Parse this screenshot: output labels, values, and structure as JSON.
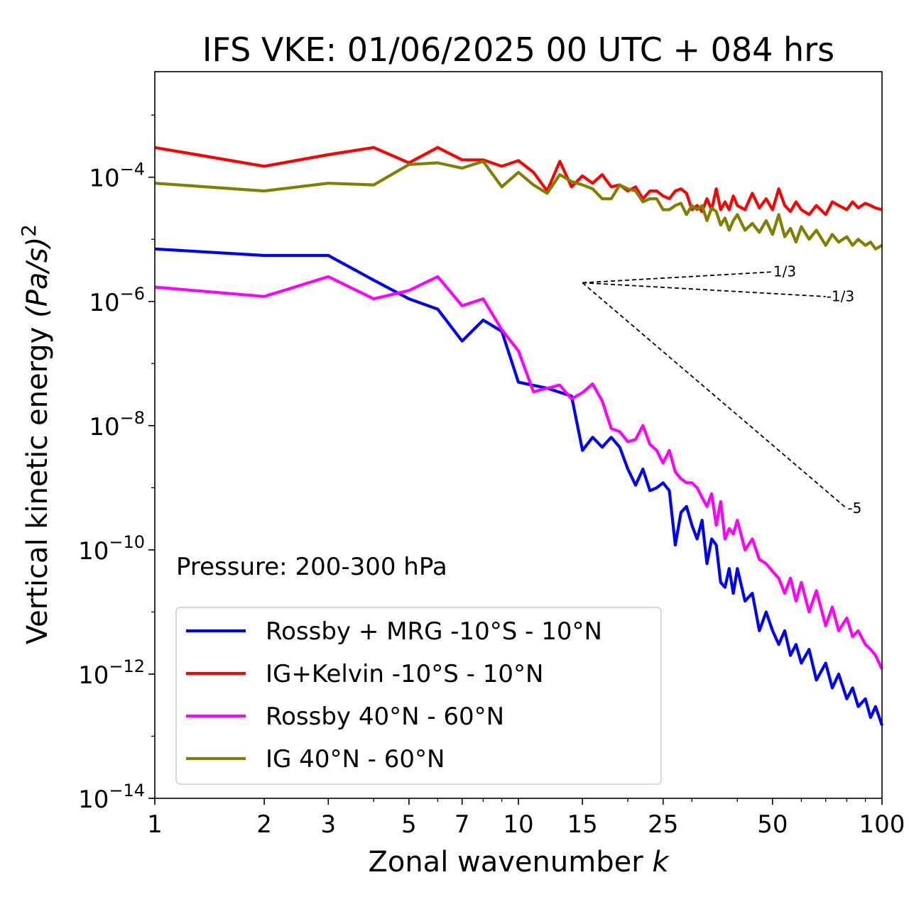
{
  "chart_data": {
    "type": "line",
    "title": "IFS VKE: 01/06/2025 00 UTC + 084 hrs",
    "xlabel": "Zonal wavenumber",
    "xlabel_italic": "k",
    "ylabel": "Vertical kinetic energy",
    "ylabel_unit": "(Pa/s)",
    "ylabel_unit_power": "2",
    "annotation": "Pressure: 200-300 hPa",
    "xscale": "log",
    "yscale": "log",
    "xlim": [
      1,
      100
    ],
    "ylim": [
      1e-14,
      0.005
    ],
    "grid": false,
    "legend_position": "lower-left",
    "x_ticks": [
      {
        "value": 1,
        "label": "1"
      },
      {
        "value": 2,
        "label": "2"
      },
      {
        "value": 3,
        "label": "3"
      },
      {
        "value": 5,
        "label": "5"
      },
      {
        "value": 7,
        "label": "7"
      },
      {
        "value": 10,
        "label": "10"
      },
      {
        "value": 15,
        "label": "15"
      },
      {
        "value": 25,
        "label": "25"
      },
      {
        "value": 50,
        "label": "50"
      },
      {
        "value": 100,
        "label": "100"
      }
    ],
    "y_ticks": [
      {
        "value": 1e-14,
        "base": "10",
        "exp": "−14"
      },
      {
        "value": 1e-12,
        "base": "10",
        "exp": "−12"
      },
      {
        "value": 1e-10,
        "base": "10",
        "exp": "−10"
      },
      {
        "value": 1e-08,
        "base": "10",
        "exp": "−8"
      },
      {
        "value": 1e-06,
        "base": "10",
        "exp": "−6"
      },
      {
        "value": 0.0001,
        "base": "10",
        "exp": "−4"
      }
    ],
    "reference_slopes": [
      {
        "label": "1/3",
        "slope": 0.3333,
        "x_start": 15,
        "x_end": 50,
        "y_start": 2e-06
      },
      {
        "label": "-1/3",
        "slope": -0.3333,
        "x_start": 15,
        "x_end": 70,
        "y_start": 2e-06
      },
      {
        "label": "-5",
        "slope": -5,
        "x_start": 15,
        "x_end": 80,
        "y_start": 2e-06
      }
    ],
    "series": [
      {
        "name": "Rossby + MRG -10°S - 10°N",
        "color": "#0000ff",
        "x": [
          1,
          2,
          3,
          4,
          5,
          6,
          7,
          8,
          9,
          10,
          12,
          14,
          15,
          16,
          17,
          18,
          19,
          20,
          21,
          22,
          23,
          24,
          25,
          26,
          27,
          28,
          29,
          30,
          31,
          32,
          33,
          34,
          35,
          36,
          37,
          38,
          39,
          40,
          42,
          44,
          46,
          48,
          50,
          52,
          54,
          56,
          58,
          60,
          63,
          66,
          70,
          73,
          76,
          80,
          83,
          86,
          90,
          93,
          96,
          100
        ],
        "values": [
          7e-06,
          5.5e-06,
          5.5e-06,
          2.2e-06,
          1.1e-06,
          7.5e-07,
          2.3e-07,
          5e-07,
          3.3e-07,
          5e-08,
          4e-08,
          3e-08,
          4e-09,
          6.5e-09,
          4.5e-09,
          6.5e-09,
          4.5e-09,
          2e-09,
          1.1e-09,
          2e-09,
          9e-10,
          1e-09,
          1.2e-09,
          9e-10,
          1.2e-10,
          4e-10,
          5e-10,
          2.5e-10,
          1.5e-10,
          3e-10,
          6e-11,
          1.5e-10,
          1.2e-10,
          3e-11,
          2.5e-11,
          5e-11,
          2e-11,
          5e-11,
          1.5e-11,
          2e-11,
          5e-12,
          1e-11,
          5e-12,
          3e-12,
          5e-12,
          2e-12,
          3e-12,
          1.5e-12,
          2.5e-12,
          8e-13,
          1.5e-12,
          6e-13,
          1e-12,
          4e-13,
          6e-13,
          3e-13,
          4e-13,
          2e-13,
          3e-13,
          1.5e-13
        ]
      },
      {
        "name": "IG+Kelvin -10°S - 10°N",
        "color": "#ff0000",
        "x": [
          1,
          2,
          3,
          4,
          5,
          6,
          7,
          8,
          9,
          10,
          11,
          12,
          13,
          14,
          15,
          16,
          17,
          18,
          19,
          20,
          21,
          22,
          23,
          24,
          25,
          26,
          27,
          28,
          29,
          30,
          31,
          32,
          33,
          34,
          35,
          36,
          37,
          38,
          39,
          40,
          42,
          44,
          46,
          48,
          50,
          52,
          54,
          56,
          58,
          60,
          63,
          66,
          70,
          73,
          76,
          80,
          83,
          86,
          90,
          93,
          96,
          100
        ],
        "values": [
          0.0003,
          0.00015,
          0.00023,
          0.0003,
          0.00017,
          0.0003,
          0.00019,
          0.00019,
          0.00015,
          0.000185,
          0.00012,
          6e-05,
          0.00018,
          7e-05,
          0.000105,
          8e-05,
          0.00011,
          7e-05,
          7.5e-05,
          6e-05,
          7e-05,
          4.5e-05,
          6e-05,
          6e-05,
          5e-05,
          4.5e-05,
          6e-05,
          6.5e-05,
          5.5e-05,
          3e-05,
          3.5e-05,
          2.8e-05,
          4.5e-05,
          3e-05,
          6.5e-05,
          3e-05,
          4e-05,
          3e-05,
          5e-05,
          3.5e-05,
          3e-05,
          5.5e-05,
          3.2e-05,
          4.5e-05,
          3e-05,
          6.5e-05,
          3.5e-05,
          2.8e-05,
          4e-05,
          3e-05,
          2.5e-05,
          3.5e-05,
          2.5e-05,
          4e-05,
          3.5e-05,
          3e-05,
          4e-05,
          3.2e-05,
          3.8e-05,
          3.5e-05,
          3.2e-05,
          3e-05
        ]
      },
      {
        "name": "Rossby 40°N - 60°N",
        "color": "#ff00ff",
        "x": [
          1,
          2,
          3,
          4,
          5,
          6,
          7,
          8,
          9,
          10,
          11,
          12,
          13,
          14,
          15,
          16,
          17,
          18,
          19,
          20,
          21,
          22,
          23,
          24,
          25,
          26,
          27,
          28,
          29,
          30,
          31,
          32,
          33,
          34,
          35,
          36,
          37,
          38,
          39,
          40,
          42,
          44,
          46,
          48,
          50,
          52,
          54,
          56,
          58,
          60,
          63,
          66,
          70,
          73,
          76,
          80,
          83,
          86,
          90,
          93,
          96,
          100
        ],
        "values": [
          1.7e-06,
          1.2e-06,
          2.5e-06,
          1.1e-06,
          1.5e-06,
          2.5e-06,
          8.5e-07,
          1.1e-06,
          3.5e-07,
          1.6e-07,
          3.5e-08,
          4e-08,
          4.5e-08,
          2.7e-08,
          3.4e-08,
          4.7e-08,
          2.5e-08,
          9e-09,
          8e-09,
          5.5e-09,
          6e-09,
          1e-08,
          5e-09,
          4e-09,
          2.5e-09,
          4e-09,
          1.8e-09,
          1.4e-09,
          1.2e-09,
          1.2e-09,
          1e-09,
          7e-10,
          5e-10,
          8e-10,
          2.5e-10,
          6e-10,
          1.5e-10,
          2.2e-10,
          1.8e-10,
          3e-10,
          1e-10,
          1.5e-10,
          7e-11,
          6e-11,
          4.5e-11,
          3.5e-11,
          2e-11,
          3.5e-11,
          1.5e-11,
          3e-11,
          1e-11,
          2.2e-11,
          6e-12,
          1.2e-11,
          5e-12,
          8e-12,
          4e-12,
          5e-12,
          3e-12,
          2.5e-12,
          2e-12,
          1.2e-12
        ]
      },
      {
        "name": "IG 40°N - 60°N",
        "color": "#808000",
        "x": [
          1,
          2,
          3,
          4,
          5,
          6,
          7,
          8,
          9,
          10,
          11,
          12,
          13,
          14,
          15,
          16,
          17,
          18,
          19,
          20,
          21,
          22,
          23,
          24,
          25,
          26,
          27,
          28,
          29,
          30,
          31,
          32,
          33,
          34,
          35,
          36,
          37,
          38,
          39,
          40,
          42,
          44,
          46,
          48,
          50,
          52,
          54,
          56,
          58,
          60,
          63,
          66,
          70,
          73,
          76,
          80,
          83,
          86,
          90,
          93,
          96,
          100
        ],
        "values": [
          8e-05,
          6e-05,
          8e-05,
          7.5e-05,
          0.00016,
          0.00017,
          0.00014,
          0.00018,
          7e-05,
          0.00012,
          7.5e-05,
          5.5e-05,
          0.00011,
          8.5e-05,
          7.5e-05,
          6.5e-05,
          4.5e-05,
          4.5e-05,
          7.5e-05,
          6.5e-05,
          6e-05,
          4e-05,
          4.5e-05,
          4.5e-05,
          3e-05,
          3e-05,
          3.5e-05,
          3.8e-05,
          2.5e-05,
          3.5e-05,
          3e-05,
          3.5e-05,
          2e-05,
          3.2e-05,
          2.8e-05,
          1.7e-05,
          2.2e-05,
          1.4e-05,
          2e-05,
          2.5e-05,
          1.4e-05,
          1.8e-05,
          1.3e-05,
          2e-05,
          1.2e-05,
          2.5e-05,
          1.1e-05,
          1.5e-05,
          9e-06,
          1.6e-05,
          1e-05,
          1.4e-05,
          8e-06,
          1.2e-05,
          9e-06,
          1.1e-05,
          8e-06,
          1e-05,
          8e-06,
          9e-06,
          7e-06,
          8e-06
        ]
      }
    ]
  }
}
